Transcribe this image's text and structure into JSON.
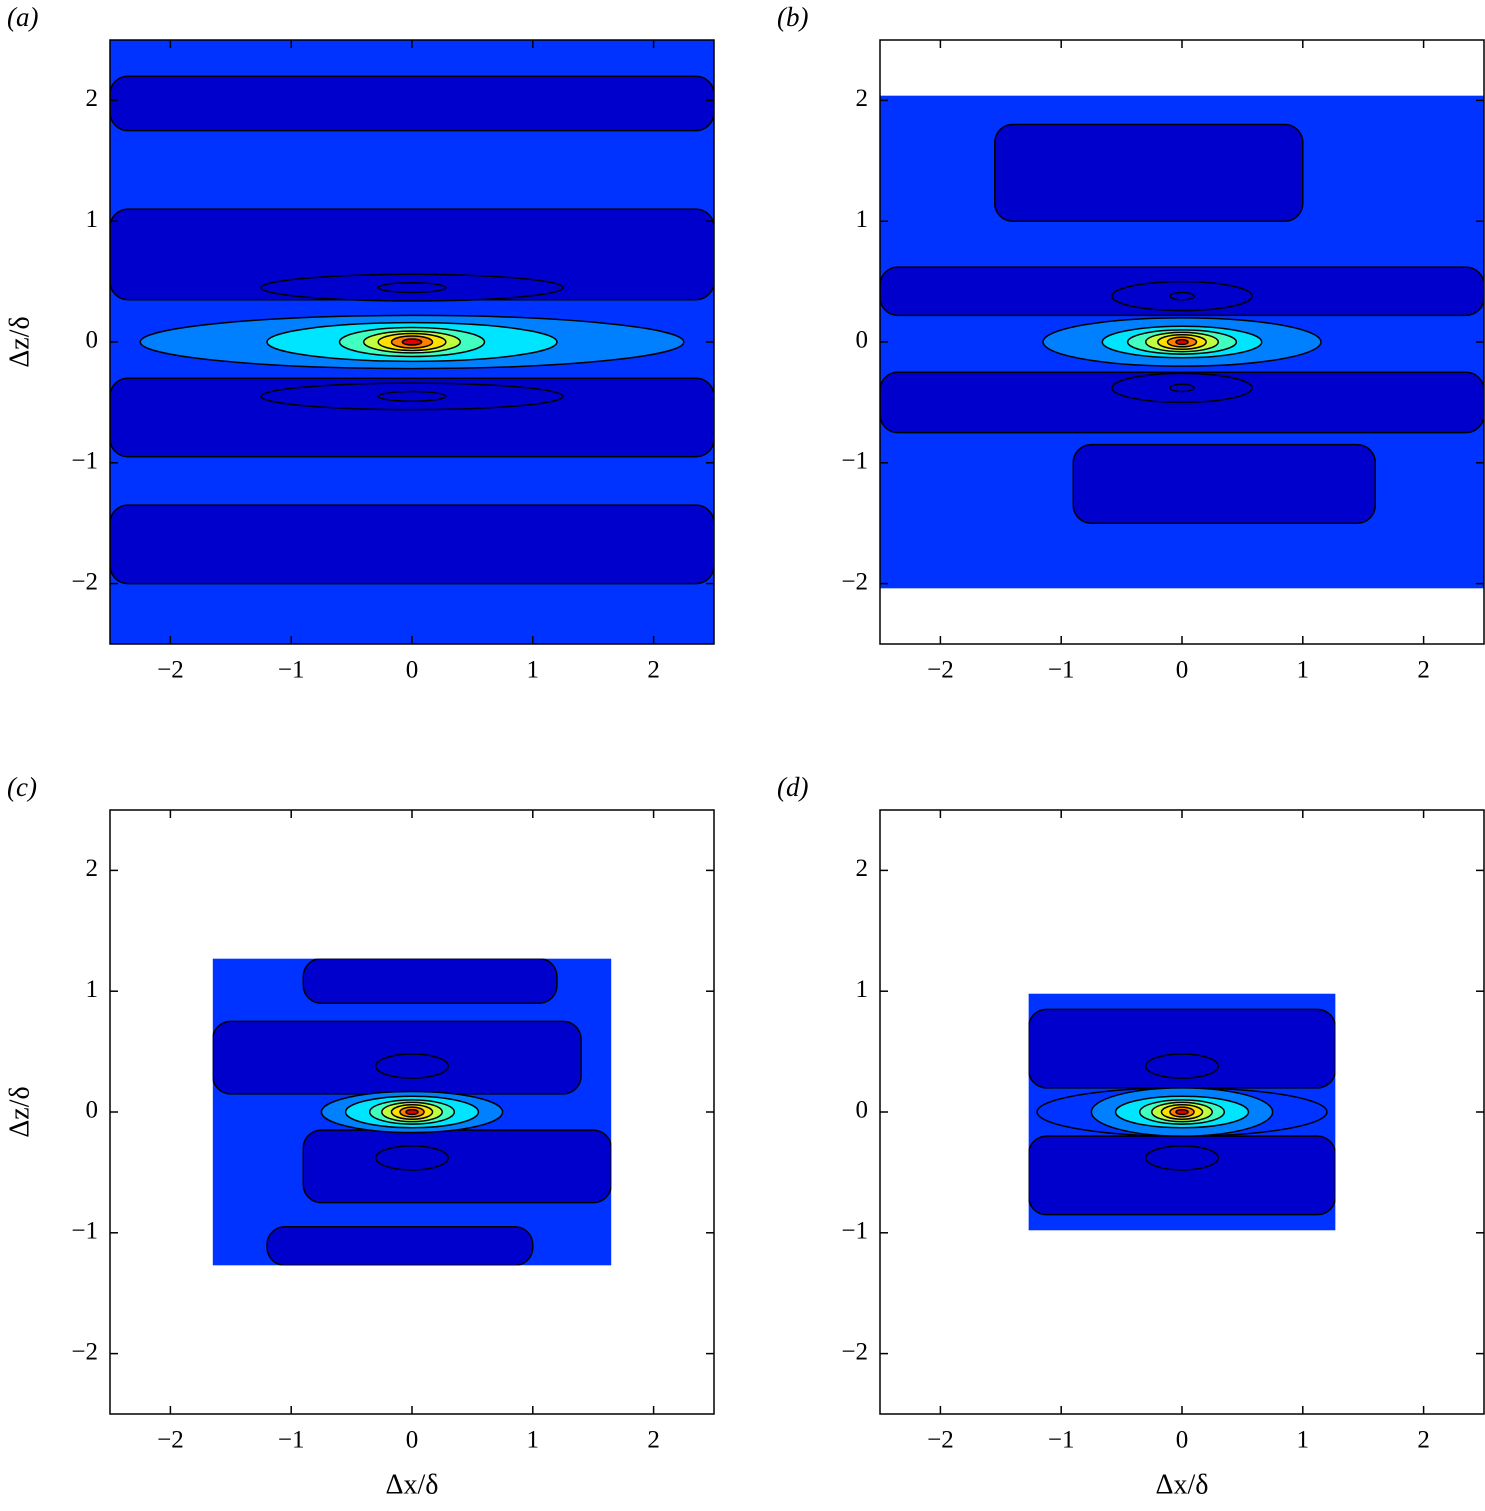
{
  "chart_data": [
    {
      "type": "contour",
      "panel_label": "(a)",
      "ylabel": "Δz/δ",
      "xlim": [
        -2.5,
        2.5
      ],
      "ylim": [
        -2.5,
        2.5
      ],
      "xticks": [
        {
          "value": -2,
          "label": "−2"
        },
        {
          "value": -1,
          "label": "−1"
        },
        0,
        1,
        2
      ],
      "yticks": [
        {
          "value": -2,
          "label": "−2"
        },
        {
          "value": -1,
          "label": "−1"
        },
        0,
        1,
        2
      ],
      "background_color": "#0033ff",
      "band_color": "#0000cc",
      "x_extent": [
        -2.5,
        2.5
      ],
      "z_extent": [
        -2.5,
        2.5
      ],
      "dark_regions": [
        {
          "x": [
            -2.5,
            2.5
          ],
          "z": [
            1.75,
            2.2
          ]
        },
        {
          "x": [
            -2.5,
            2.5
          ],
          "z": [
            0.35,
            1.1
          ]
        },
        {
          "x": [
            -2.5,
            2.5
          ],
          "z": [
            -0.95,
            -0.3
          ]
        },
        {
          "x": [
            -2.5,
            2.5
          ],
          "z": [
            -2.0,
            -1.35
          ]
        }
      ],
      "lobes": [
        {
          "z": 0.45,
          "rx": 1.25,
          "rz": 0.11
        },
        {
          "z": 0.45,
          "rx": 0.28,
          "rz": 0.04
        },
        {
          "z": -0.45,
          "rx": 1.25,
          "rz": 0.11
        },
        {
          "z": -0.45,
          "rx": 0.28,
          "rz": 0.04
        }
      ],
      "levels": [
        {
          "rx": 2.25,
          "rz": 0.22,
          "color": "#0080ff"
        },
        {
          "rx": 1.2,
          "rz": 0.16,
          "color": "#00e5ff"
        },
        {
          "rx": 0.6,
          "rz": 0.12,
          "color": "#40ffc0"
        },
        {
          "rx": 0.4,
          "rz": 0.09,
          "color": "#c0ff40"
        },
        {
          "rx": 0.28,
          "rz": 0.07,
          "color": "#ffe000"
        },
        {
          "rx": 0.17,
          "rz": 0.05,
          "color": "#ff8000"
        },
        {
          "rx": 0.08,
          "rz": 0.025,
          "color": "#e00000"
        }
      ]
    },
    {
      "type": "contour",
      "panel_label": "(b)",
      "xlim": [
        -2.5,
        2.5
      ],
      "ylim": [
        -2.5,
        2.5
      ],
      "xticks": [
        {
          "value": -2,
          "label": "−2"
        },
        {
          "value": -1,
          "label": "−1"
        },
        0,
        1,
        2
      ],
      "yticks": [
        {
          "value": -2,
          "label": "−2"
        },
        {
          "value": -1,
          "label": "−1"
        },
        0,
        1,
        2
      ],
      "background_color": "#0033ff",
      "band_color": "#0000cc",
      "x_extent": [
        -2.5,
        2.5
      ],
      "z_extent": [
        -2.04,
        2.04
      ],
      "dark_regions": [
        {
          "x": [
            -2.5,
            2.5
          ],
          "z": [
            0.22,
            0.62
          ]
        },
        {
          "x": [
            -2.5,
            2.5
          ],
          "z": [
            -0.75,
            -0.25
          ]
        },
        {
          "x": [
            -1.55,
            1.0
          ],
          "z": [
            1.0,
            1.8
          ]
        },
        {
          "x": [
            -0.9,
            1.6
          ],
          "z": [
            -1.5,
            -0.85
          ]
        }
      ],
      "lobes": [
        {
          "z": 0.38,
          "rx": 0.58,
          "rz": 0.12
        },
        {
          "z": 0.38,
          "rx": 0.1,
          "rz": 0.03
        },
        {
          "z": -0.38,
          "rx": 0.58,
          "rz": 0.12
        },
        {
          "z": -0.38,
          "rx": 0.1,
          "rz": 0.03
        }
      ],
      "levels": [
        {
          "rx": 1.15,
          "rz": 0.2,
          "color": "#0080ff"
        },
        {
          "rx": 0.66,
          "rz": 0.13,
          "color": "#00e5ff"
        },
        {
          "rx": 0.45,
          "rz": 0.1,
          "color": "#40ffc0"
        },
        {
          "rx": 0.3,
          "rz": 0.08,
          "color": "#c0ff40"
        },
        {
          "rx": 0.2,
          "rz": 0.06,
          "color": "#ffe000"
        },
        {
          "rx": 0.12,
          "rz": 0.04,
          "color": "#ff8000"
        },
        {
          "rx": 0.05,
          "rz": 0.02,
          "color": "#e00000"
        }
      ]
    },
    {
      "type": "contour",
      "panel_label": "(c)",
      "xlabel": "Δx/δ",
      "ylabel": "Δz/δ",
      "xlim": [
        -2.5,
        2.5
      ],
      "ylim": [
        -2.5,
        2.5
      ],
      "xticks": [
        {
          "value": -2,
          "label": "−2"
        },
        {
          "value": -1,
          "label": "−1"
        },
        0,
        1,
        2
      ],
      "yticks": [
        {
          "value": -2,
          "label": "−2"
        },
        {
          "value": -1,
          "label": "−1"
        },
        0,
        1,
        2
      ],
      "background_color": "#0033ff",
      "band_color": "#0000cc",
      "x_extent": [
        -1.65,
        1.65
      ],
      "z_extent": [
        -1.27,
        1.27
      ],
      "dark_regions": [
        {
          "x": [
            -1.65,
            1.4
          ],
          "z": [
            0.15,
            0.75
          ]
        },
        {
          "x": [
            -0.9,
            1.65
          ],
          "z": [
            -0.75,
            -0.15
          ]
        },
        {
          "x": [
            -1.2,
            1.0
          ],
          "z": [
            -1.27,
            -0.95
          ]
        },
        {
          "x": [
            -0.9,
            1.2
          ],
          "z": [
            0.9,
            1.27
          ]
        }
      ],
      "lobes": [
        {
          "z": 0.38,
          "rx": 0.3,
          "rz": 0.1
        },
        {
          "z": -0.38,
          "rx": 0.3,
          "rz": 0.1
        }
      ],
      "levels": [
        {
          "rx": 0.75,
          "rz": 0.17,
          "color": "#0080ff"
        },
        {
          "rx": 0.55,
          "rz": 0.13,
          "color": "#00e5ff"
        },
        {
          "rx": 0.35,
          "rz": 0.1,
          "color": "#40ffc0"
        },
        {
          "rx": 0.25,
          "rz": 0.08,
          "color": "#c0ff40"
        },
        {
          "rx": 0.17,
          "rz": 0.06,
          "color": "#ffe000"
        },
        {
          "rx": 0.1,
          "rz": 0.04,
          "color": "#ff8000"
        },
        {
          "rx": 0.05,
          "rz": 0.02,
          "color": "#e00000"
        }
      ]
    },
    {
      "type": "contour",
      "panel_label": "(d)",
      "xlabel": "Δx/δ",
      "xlim": [
        -2.5,
        2.5
      ],
      "ylim": [
        -2.5,
        2.5
      ],
      "xticks": [
        {
          "value": -2,
          "label": "−2"
        },
        {
          "value": -1,
          "label": "−1"
        },
        0,
        1,
        2
      ],
      "yticks": [
        {
          "value": -2,
          "label": "−2"
        },
        {
          "value": -1,
          "label": "−1"
        },
        0,
        1,
        2
      ],
      "background_color": "#0033ff",
      "band_color": "#0000cc",
      "x_extent": [
        -1.27,
        1.27
      ],
      "z_extent": [
        -0.98,
        0.98
      ],
      "dark_regions": [
        {
          "x": [
            -1.27,
            1.27
          ],
          "z": [
            0.2,
            0.85
          ]
        },
        {
          "x": [
            -1.27,
            1.27
          ],
          "z": [
            -0.85,
            -0.2
          ]
        }
      ],
      "lobes": [
        {
          "z": 0.38,
          "rx": 0.3,
          "rz": 0.1
        },
        {
          "z": -0.38,
          "rx": 0.3,
          "rz": 0.1
        }
      ],
      "levels": [
        {
          "rx": 1.2,
          "rz": 0.2,
          "color": "#0033ff"
        },
        {
          "rx": 0.75,
          "rz": 0.2,
          "color": "#0080ff"
        },
        {
          "rx": 0.55,
          "rz": 0.13,
          "color": "#00e5ff"
        },
        {
          "rx": 0.35,
          "rz": 0.1,
          "color": "#40ffc0"
        },
        {
          "rx": 0.25,
          "rz": 0.08,
          "color": "#c0ff40"
        },
        {
          "rx": 0.17,
          "rz": 0.06,
          "color": "#ffe000"
        },
        {
          "rx": 0.1,
          "rz": 0.04,
          "color": "#ff8000"
        },
        {
          "rx": 0.05,
          "rz": 0.02,
          "color": "#e00000"
        }
      ]
    }
  ]
}
